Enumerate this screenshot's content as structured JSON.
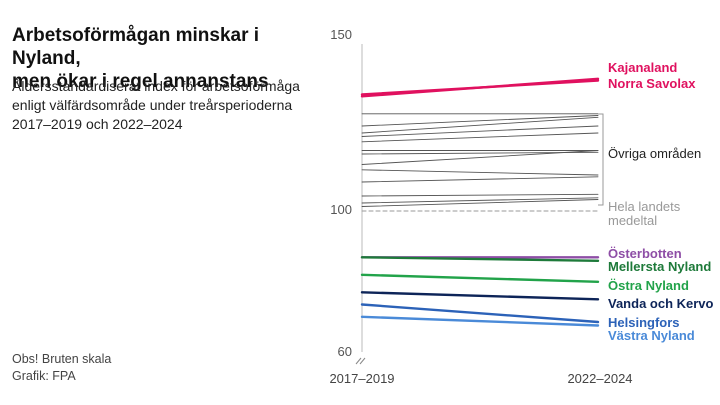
{
  "title_lines": [
    "Arbetsoförmågan minskar i Nyland,",
    "men ökar i regel annanstans"
  ],
  "subtitle_lines": [
    "Åldersstandardiserat index för arbetsoförmåga",
    "enligt välfärdsområde under treårsperioderna",
    "2017–2019 och 2022–2024"
  ],
  "notes": [
    "Obs! Bruten skala",
    "Grafik: FPA"
  ],
  "colors": {
    "pink": "#e0115f",
    "purple": "#8e4ea6",
    "darkgreen": "#1e7a3a",
    "green": "#22a34a",
    "navy": "#0d2458",
    "blue": "#2c62b8",
    "lightblue": "#4a8ad8",
    "gray": "#555555",
    "avg": "#999999"
  },
  "chart_data": {
    "type": "line",
    "x": [
      "2017–2019",
      "2022–2024"
    ],
    "yticks": [
      150,
      100,
      60
    ],
    "ylim": [
      60,
      150
    ],
    "broken_axis": true,
    "series": [
      {
        "name": "Kajanaland",
        "values": [
          133,
          137
        ],
        "color": "#e0115f"
      },
      {
        "name": "Norra Savolax",
        "values": [
          132.5,
          137.5
        ],
        "color": "#e0115f"
      },
      {
        "name": "",
        "values": [
          127.5,
          127.5
        ],
        "color": "#555555"
      },
      {
        "name": "",
        "values": [
          124,
          127
        ],
        "color": "#555555"
      },
      {
        "name": "",
        "values": [
          122,
          126.5
        ],
        "color": "#555555"
      },
      {
        "name": "",
        "values": [
          121,
          124
        ],
        "color": "#555555"
      },
      {
        "name": "",
        "values": [
          119.5,
          122
        ],
        "color": "#555555"
      },
      {
        "name": "",
        "values": [
          117,
          117
        ],
        "color": "#555555"
      },
      {
        "name": "",
        "values": [
          116,
          116.5
        ],
        "color": "#555555"
      },
      {
        "name": "",
        "values": [
          113,
          117
        ],
        "color": "#555555"
      },
      {
        "name": "",
        "values": [
          111.5,
          110
        ],
        "color": "#555555"
      },
      {
        "name": "",
        "values": [
          108,
          109.5
        ],
        "color": "#555555"
      },
      {
        "name": "",
        "values": [
          104,
          104.5
        ],
        "color": "#555555"
      },
      {
        "name": "",
        "values": [
          102,
          103.5
        ],
        "color": "#555555"
      },
      {
        "name": "",
        "values": [
          101,
          103
        ],
        "color": "#555555"
      },
      {
        "name": "Hela landets medeltal",
        "values": [
          99.7,
          99.7
        ],
        "color": "#999999",
        "dashed": true
      },
      {
        "name": "Österbotten",
        "values": [
          86.5,
          86.5
        ],
        "color": "#8e4ea6"
      },
      {
        "name": "Mellersta Nyland",
        "values": [
          86.5,
          85.5
        ],
        "color": "#1e7a3a"
      },
      {
        "name": "Östra Nyland",
        "values": [
          81.5,
          79.5
        ],
        "color": "#22a34a"
      },
      {
        "name": "Vanda och Kervo",
        "values": [
          76.5,
          74.5
        ],
        "color": "#0d2458"
      },
      {
        "name": "Helsingfors",
        "values": [
          73,
          68
        ],
        "color": "#2c62b8"
      },
      {
        "name": "Västra Nyland",
        "values": [
          69.5,
          67
        ],
        "color": "#4a8ad8"
      }
    ],
    "group_label": "Övriga områden",
    "labels": [
      {
        "text": "Kajanaland",
        "color": "#e0115f"
      },
      {
        "text": "Norra Savolax",
        "color": "#e0115f"
      },
      {
        "text": "Övriga områden",
        "color": "#222222"
      },
      {
        "text": "Hela landets",
        "color": "#999999"
      },
      {
        "text": "medeltal",
        "color": "#999999"
      },
      {
        "text": "Österbotten",
        "color": "#8e4ea6"
      },
      {
        "text": "Mellersta Nyland",
        "color": "#1e7a3a"
      },
      {
        "text": "Östra Nyland",
        "color": "#22a34a"
      },
      {
        "text": "Vanda och Kervo",
        "color": "#0d2458"
      },
      {
        "text": "Helsingfors",
        "color": "#2c62b8"
      },
      {
        "text": "Västra Nyland",
        "color": "#4a8ad8"
      }
    ]
  }
}
